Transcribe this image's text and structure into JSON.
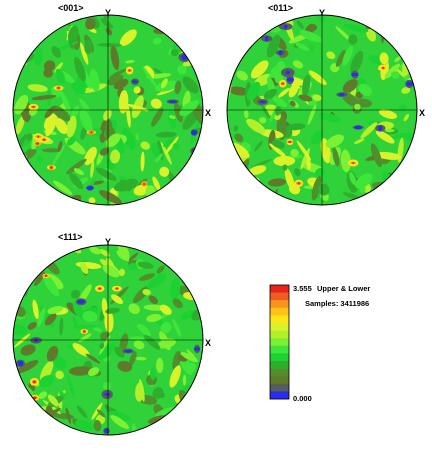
{
  "chart_data": {
    "type": "heatmap",
    "subtype": "pole-figure",
    "figures": [
      {
        "title": "<001>",
        "y_label": "Y",
        "x_label": "X",
        "seed": 11,
        "blue_spots": 7,
        "hot_spots": 9
      },
      {
        "title": "<011>",
        "y_label": "Y",
        "x_label": "X",
        "seed": 37,
        "blue_spots": 14,
        "hot_spots": 5
      },
      {
        "title": "<111>",
        "y_label": "Y",
        "x_label": "X",
        "seed": 73,
        "blue_spots": 9,
        "hot_spots": 6
      }
    ],
    "legend": {
      "max_label": "3.555",
      "min_label": "0.000",
      "projection": "Upper & Lower",
      "samples_label": "Samples: 3411986",
      "value_range": [
        0.0,
        3.555
      ],
      "colors": [
        "#e8221c",
        "#f15a22",
        "#f7941d",
        "#fcc216",
        "#fbe617",
        "#d9f22a",
        "#b2f02c",
        "#7cf033",
        "#3fe63a",
        "#1bd232",
        "#2fae2e",
        "#4f8f2c",
        "#5f7a2a",
        "#555e5a",
        "#2a2cf0"
      ]
    },
    "grid": true
  }
}
